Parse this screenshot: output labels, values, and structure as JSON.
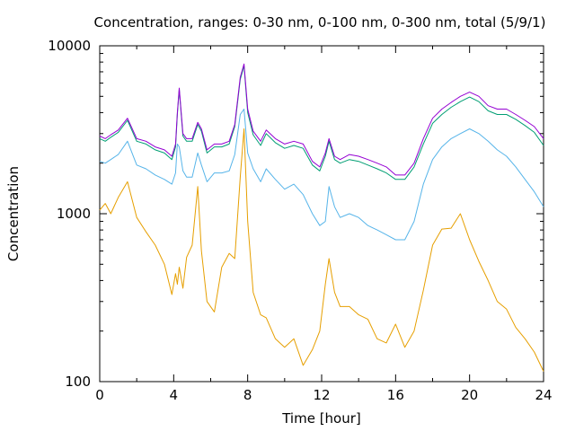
{
  "chart_data": {
    "type": "line",
    "title": "Concentration, ranges: 0-30 nm, 0-100 nm, 0-300 nm, total (5/9/1)",
    "xlabel": "Time [hour]",
    "ylabel": "Concentration",
    "xlim": [
      0,
      24
    ],
    "ylim": [
      100,
      10000
    ],
    "yscale": "log",
    "grid": false,
    "legend": "none",
    "x_ticks": [
      "0",
      "4",
      "8",
      "12",
      "16",
      "20",
      "24"
    ],
    "y_ticks": [
      "100",
      "1000",
      "10000"
    ],
    "series": [
      {
        "color": "#9400d3",
        "x": [
          0,
          0.3,
          0.6,
          1,
          1.5,
          2,
          2.5,
          3,
          3.5,
          3.9,
          4.1,
          4.2,
          4.3,
          4.5,
          4.7,
          5,
          5.3,
          5.5,
          5.8,
          6.2,
          6.6,
          7,
          7.3,
          7.6,
          7.8,
          8,
          8.3,
          8.7,
          9,
          9.5,
          10,
          10.5,
          11,
          11.5,
          11.9,
          12.2,
          12.4,
          12.7,
          13,
          13.5,
          14,
          14.5,
          15,
          15.5,
          16,
          16.5,
          17,
          17.5,
          18,
          18.5,
          19,
          19.5,
          20,
          20.5,
          21,
          21.5,
          22,
          22.5,
          23,
          23.5,
          24
        ],
        "y": [
          2900,
          2800,
          2950,
          3150,
          3700,
          2800,
          2700,
          2500,
          2400,
          2200,
          2600,
          4000,
          5600,
          3000,
          2800,
          2800,
          3500,
          3200,
          2400,
          2600,
          2600,
          2700,
          3400,
          6500,
          7800,
          4200,
          3100,
          2700,
          3150,
          2800,
          2600,
          2700,
          2600,
          2050,
          1900,
          2300,
          2800,
          2200,
          2100,
          2250,
          2200,
          2100,
          2000,
          1900,
          1700,
          1700,
          2000,
          2800,
          3700,
          4200,
          4600,
          5000,
          5300,
          5000,
          4400,
          4200,
          4200,
          3900,
          3600,
          3300,
          2800
        ]
      },
      {
        "color": "#009e73",
        "x": [
          0,
          0.3,
          0.6,
          1,
          1.5,
          2,
          2.5,
          3,
          3.5,
          3.9,
          4.1,
          4.2,
          4.3,
          4.5,
          4.7,
          5,
          5.3,
          5.5,
          5.8,
          6.2,
          6.6,
          7,
          7.3,
          7.6,
          7.8,
          8,
          8.3,
          8.7,
          9,
          9.5,
          10,
          10.5,
          11,
          11.5,
          11.9,
          12.2,
          12.4,
          12.7,
          13,
          13.5,
          14,
          14.5,
          15,
          15.5,
          16,
          16.5,
          17,
          17.5,
          18,
          18.5,
          19,
          19.5,
          20,
          20.5,
          21,
          21.5,
          22,
          22.5,
          23,
          23.5,
          24
        ],
        "y": [
          2800,
          2700,
          2850,
          3050,
          3600,
          2700,
          2600,
          2400,
          2300,
          2100,
          2500,
          3900,
          5500,
          2900,
          2700,
          2700,
          3400,
          3100,
          2300,
          2500,
          2500,
          2600,
          3300,
          6300,
          7600,
          4000,
          2950,
          2550,
          3000,
          2650,
          2450,
          2550,
          2450,
          1950,
          1800,
          2200,
          2700,
          2100,
          2000,
          2100,
          2050,
          1950,
          1850,
          1750,
          1600,
          1600,
          1900,
          2600,
          3450,
          3900,
          4300,
          4650,
          4950,
          4650,
          4100,
          3900,
          3900,
          3650,
          3350,
          3050,
          2550
        ]
      },
      {
        "color": "#56b4e9",
        "x": [
          0,
          0.3,
          0.6,
          1,
          1.5,
          2,
          2.5,
          3,
          3.5,
          3.9,
          4.1,
          4.2,
          4.3,
          4.5,
          4.7,
          5,
          5.3,
          5.5,
          5.8,
          6.2,
          6.6,
          7,
          7.3,
          7.6,
          7.8,
          8,
          8.3,
          8.7,
          9,
          9.5,
          10,
          10.5,
          11,
          11.5,
          11.9,
          12.2,
          12.4,
          12.7,
          13,
          13.5,
          14,
          14.5,
          15,
          15.5,
          16,
          16.5,
          17,
          17.5,
          18,
          18.5,
          19,
          19.5,
          20,
          20.5,
          21,
          21.5,
          22,
          22.5,
          23,
          23.5,
          24
        ],
        "y": [
          2050,
          2000,
          2100,
          2250,
          2700,
          1950,
          1850,
          1700,
          1600,
          1500,
          1750,
          2600,
          2500,
          1800,
          1650,
          1650,
          2300,
          1950,
          1550,
          1750,
          1750,
          1800,
          2250,
          3900,
          4200,
          2300,
          1850,
          1550,
          1850,
          1600,
          1400,
          1500,
          1300,
          1000,
          850,
          900,
          1450,
          1100,
          950,
          1000,
          950,
          850,
          800,
          750,
          700,
          700,
          900,
          1500,
          2100,
          2500,
          2800,
          3000,
          3200,
          3000,
          2700,
          2400,
          2200,
          1900,
          1600,
          1350,
          1100
        ]
      },
      {
        "color": "#e69f00",
        "x": [
          0,
          0.3,
          0.6,
          1,
          1.5,
          2,
          2.5,
          3,
          3.5,
          3.9,
          4.1,
          4.2,
          4.3,
          4.5,
          4.7,
          5,
          5.3,
          5.5,
          5.8,
          6.2,
          6.6,
          7,
          7.3,
          7.6,
          7.8,
          8,
          8.3,
          8.7,
          9,
          9.5,
          10,
          10.5,
          11,
          11.5,
          11.9,
          12.2,
          12.4,
          12.7,
          13,
          13.5,
          14,
          14.5,
          15,
          15.5,
          16,
          16.5,
          17,
          17.5,
          18,
          18.5,
          19,
          19.5,
          20,
          20.5,
          21,
          21.5,
          22,
          22.5,
          23,
          23.5,
          24
        ],
        "y": [
          1050,
          1150,
          1000,
          1250,
          1550,
          950,
          780,
          650,
          500,
          330,
          440,
          380,
          480,
          360,
          550,
          650,
          1450,
          600,
          300,
          260,
          480,
          580,
          540,
          1650,
          3200,
          900,
          340,
          250,
          240,
          180,
          160,
          180,
          125,
          155,
          200,
          380,
          540,
          340,
          280,
          280,
          250,
          235,
          180,
          170,
          220,
          160,
          200,
          350,
          650,
          810,
          820,
          1000,
          700,
          520,
          400,
          300,
          270,
          210,
          180,
          150,
          115
        ]
      }
    ]
  }
}
